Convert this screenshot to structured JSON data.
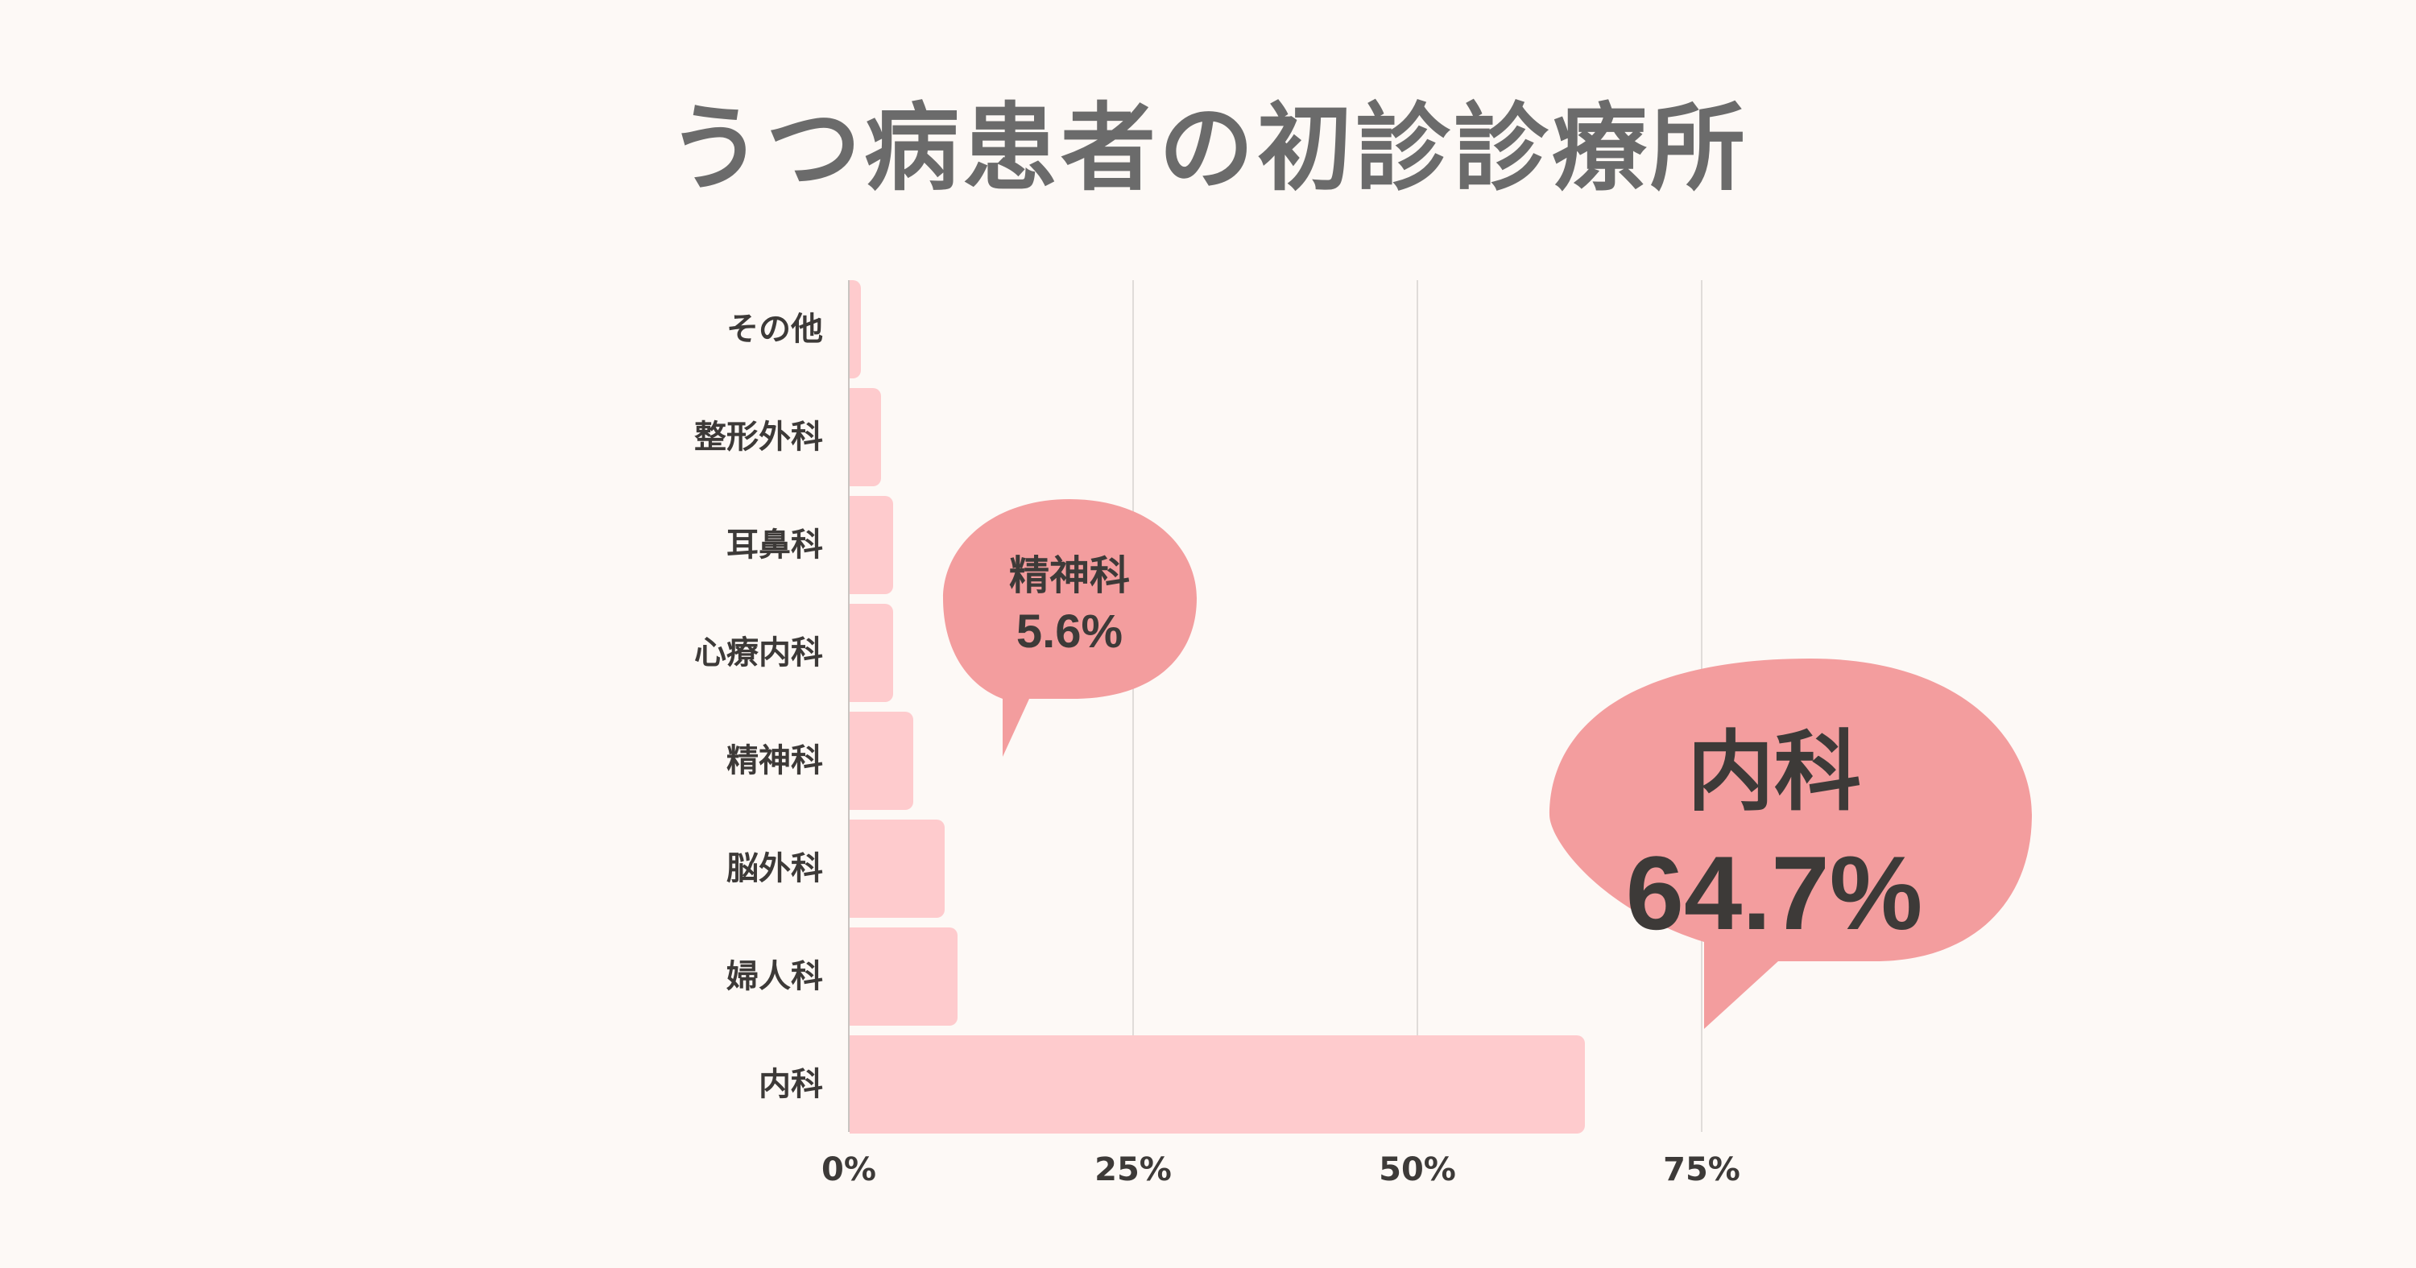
{
  "title": "うつ病患者の初診診療所",
  "colors": {
    "background": "#fdf9f6",
    "bar": "#fecbcd",
    "callout": "#f39d9e",
    "text": "#3d3a38",
    "title": "#6b6b6b",
    "grid": "#e0dcd9"
  },
  "axis": {
    "x_ticks": [
      "0%",
      "25%",
      "50%",
      "75%"
    ]
  },
  "categories": [
    "その他",
    "整形外科",
    "耳鼻科",
    "心療内科",
    "精神科",
    "脳外科",
    "婦人科",
    "内科"
  ],
  "callouts": {
    "psychiatry": {
      "label": "精神科",
      "value": "5.6%"
    },
    "internal": {
      "label": "内科",
      "value": "64.7%"
    }
  },
  "chart_data": {
    "type": "bar",
    "orientation": "horizontal",
    "title": "うつ病患者の初診診療所",
    "xlabel": "",
    "ylabel": "",
    "categories": [
      "その他",
      "整形外科",
      "耳鼻科",
      "心療内科",
      "精神科",
      "脳外科",
      "婦人科",
      "内科"
    ],
    "values": [
      1.0,
      2.8,
      3.8,
      3.8,
      5.6,
      8.4,
      9.5,
      64.7
    ],
    "unit": "%",
    "xlim": [
      0,
      75
    ],
    "x_ticks": [
      "0%",
      "25%",
      "50%",
      "75%"
    ],
    "grid": "vertical",
    "legend": "none",
    "annotations": [
      {
        "category": "精神科",
        "text": "精神科 5.6%"
      },
      {
        "category": "内科",
        "text": "内科 64.7%"
      }
    ]
  }
}
